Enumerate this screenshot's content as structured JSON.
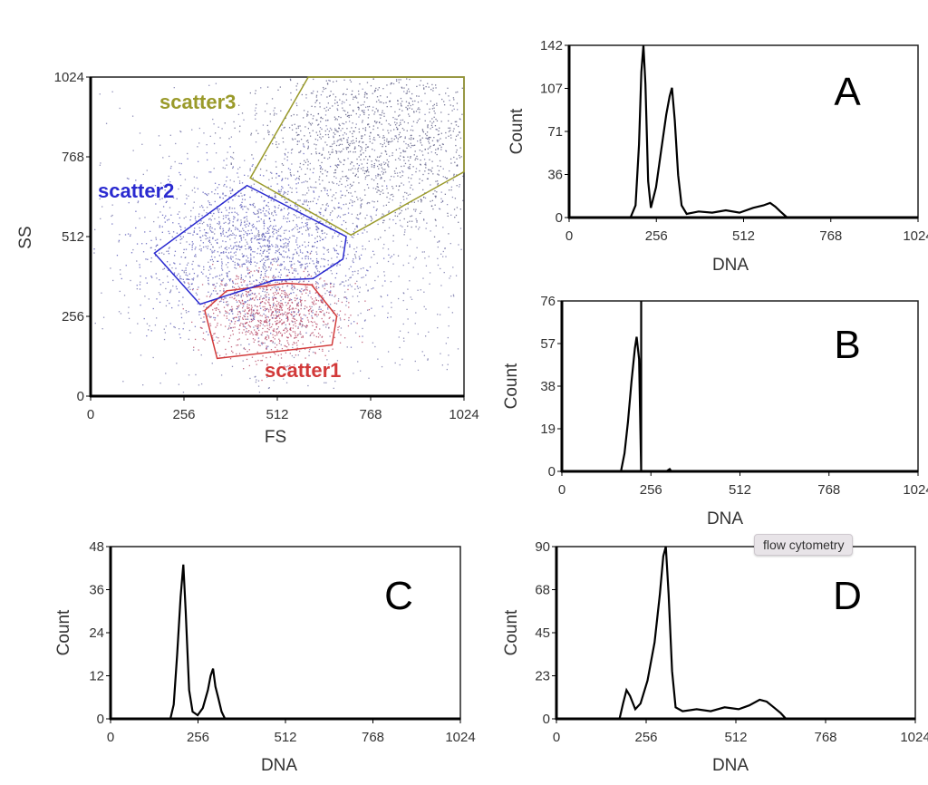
{
  "chart_data": [
    {
      "type": "scatter",
      "panel": "scatter",
      "xlabel": "FS",
      "ylabel": "SS",
      "xlim": [
        0,
        1024
      ],
      "ylim": [
        0,
        1024
      ],
      "xticks": [
        "0",
        "256",
        "512",
        "768",
        "1024"
      ],
      "yticks": [
        "0",
        "256",
        "512",
        "768",
        "1024"
      ],
      "gates": [
        {
          "name": "scatter1",
          "color": "#d23a3a",
          "vertices": [
            [
              313,
              275
            ],
            [
              347,
              121
            ],
            [
              662,
              164
            ],
            [
              675,
              256
            ],
            [
              606,
              357
            ],
            [
              537,
              362
            ],
            [
              373,
              338
            ]
          ]
        },
        {
          "name": "scatter2",
          "color": "#2a2ad0",
          "vertices": [
            [
              429,
              676
            ],
            [
              701,
              512
            ],
            [
              692,
              440
            ],
            [
              610,
              377
            ],
            [
              503,
              372
            ],
            [
              300,
              295
            ],
            [
              175,
              459
            ]
          ]
        },
        {
          "name": "scatter3",
          "color": "#9a9a2a",
          "vertices": [
            [
              597,
              1024
            ],
            [
              1024,
              1024
            ],
            [
              1024,
              720
            ],
            [
              714,
              517
            ],
            [
              438,
              700
            ]
          ]
        }
      ]
    },
    {
      "type": "line",
      "panel": "A",
      "xlabel": "DNA",
      "ylabel": "Count",
      "xlim": [
        0,
        1024
      ],
      "ylim": [
        0,
        142
      ],
      "xticks": [
        "0",
        "256",
        "512",
        "768",
        "1024"
      ],
      "yticks": [
        "0",
        "36",
        "71",
        "107",
        "142"
      ],
      "points": [
        [
          180,
          0
        ],
        [
          195,
          10
        ],
        [
          205,
          60
        ],
        [
          212,
          120
        ],
        [
          218,
          142
        ],
        [
          224,
          110
        ],
        [
          232,
          30
        ],
        [
          240,
          8
        ],
        [
          255,
          25
        ],
        [
          270,
          55
        ],
        [
          285,
          85
        ],
        [
          295,
          100
        ],
        [
          302,
          107
        ],
        [
          310,
          80
        ],
        [
          320,
          35
        ],
        [
          330,
          10
        ],
        [
          345,
          3
        ],
        [
          380,
          5
        ],
        [
          420,
          4
        ],
        [
          460,
          6
        ],
        [
          500,
          4
        ],
        [
          540,
          8
        ],
        [
          570,
          10
        ],
        [
          590,
          12
        ],
        [
          605,
          9
        ],
        [
          620,
          5
        ],
        [
          640,
          0
        ]
      ]
    },
    {
      "type": "line",
      "panel": "B",
      "xlabel": "DNA",
      "ylabel": "Count",
      "xlim": [
        0,
        1024
      ],
      "ylim": [
        0,
        76
      ],
      "xticks": [
        "0",
        "256",
        "512",
        "768",
        "1024"
      ],
      "yticks": [
        "0",
        "19",
        "38",
        "57",
        "76"
      ],
      "points": [
        [
          170,
          0
        ],
        [
          180,
          8
        ],
        [
          190,
          22
        ],
        [
          200,
          40
        ],
        [
          210,
          55
        ],
        [
          215,
          60
        ],
        [
          222,
          50
        ],
        [
          228,
          0
        ],
        [
          228,
          76
        ],
        [
          228,
          0
        ],
        [
          300,
          0
        ],
        [
          310,
          1
        ],
        [
          315,
          0
        ]
      ]
    },
    {
      "type": "line",
      "panel": "C",
      "xlabel": "DNA",
      "ylabel": "Count",
      "xlim": [
        0,
        1024
      ],
      "ylim": [
        0,
        48
      ],
      "xticks": [
        "0",
        "256",
        "512",
        "768",
        "1024"
      ],
      "yticks": [
        "0",
        "12",
        "24",
        "36",
        "48"
      ],
      "points": [
        [
          175,
          0
        ],
        [
          185,
          4
        ],
        [
          195,
          18
        ],
        [
          205,
          34
        ],
        [
          213,
          43
        ],
        [
          220,
          30
        ],
        [
          230,
          8
        ],
        [
          240,
          2
        ],
        [
          255,
          1
        ],
        [
          270,
          3
        ],
        [
          285,
          8
        ],
        [
          293,
          12
        ],
        [
          300,
          14
        ],
        [
          307,
          9
        ],
        [
          315,
          6
        ],
        [
          325,
          2
        ],
        [
          335,
          0
        ]
      ]
    },
    {
      "type": "line",
      "panel": "D",
      "xlabel": "DNA",
      "ylabel": "Count",
      "xlim": [
        0,
        1024
      ],
      "ylim": [
        0,
        90
      ],
      "xticks": [
        "0",
        "256",
        "512",
        "768",
        "1024"
      ],
      "yticks": [
        "0",
        "23",
        "45",
        "68",
        "90"
      ],
      "points": [
        [
          180,
          0
        ],
        [
          190,
          8
        ],
        [
          200,
          15
        ],
        [
          210,
          12
        ],
        [
          225,
          5
        ],
        [
          240,
          8
        ],
        [
          260,
          20
        ],
        [
          280,
          40
        ],
        [
          295,
          65
        ],
        [
          305,
          85
        ],
        [
          312,
          90
        ],
        [
          320,
          65
        ],
        [
          330,
          25
        ],
        [
          340,
          6
        ],
        [
          360,
          4
        ],
        [
          400,
          5
        ],
        [
          440,
          4
        ],
        [
          480,
          6
        ],
        [
          520,
          5
        ],
        [
          550,
          7
        ],
        [
          580,
          10
        ],
        [
          600,
          9
        ],
        [
          620,
          6
        ],
        [
          640,
          3
        ],
        [
          655,
          0
        ]
      ]
    }
  ],
  "panel_labels": {
    "A": "A",
    "B": "B",
    "C": "C",
    "D": "D"
  },
  "tooltip": "flow cytometry"
}
